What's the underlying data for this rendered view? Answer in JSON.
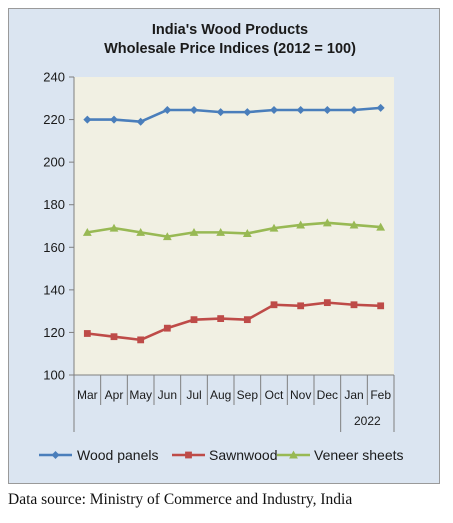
{
  "chart_data": {
    "type": "line",
    "title": [
      "India's Wood Products",
      "Wholesale Price Indices (2012 = 100)"
    ],
    "categories": [
      "Mar",
      "Apr",
      "May",
      "Jun",
      "Jul",
      "Aug",
      "Sep",
      "Oct",
      "Nov",
      "Dec",
      "Jan",
      "Feb"
    ],
    "year_group": {
      "label": "2022",
      "from": "Jan",
      "to": "Feb"
    },
    "ylim": [
      100,
      240
    ],
    "yticks": [
      100,
      120,
      140,
      160,
      180,
      200,
      220,
      240
    ],
    "grid": false,
    "legend_position": "bottom",
    "series": [
      {
        "name": "Wood panels",
        "color": "#4a7ebb",
        "marker": "diamond",
        "values": [
          220.0,
          220.0,
          219.0,
          224.5,
          224.5,
          223.5,
          223.5,
          224.5,
          224.5,
          224.5,
          224.5,
          225.5
        ]
      },
      {
        "name": "Sawnwood",
        "color": "#be4b48",
        "marker": "square",
        "values": [
          119.5,
          118.0,
          116.5,
          122.0,
          126.0,
          126.5,
          126.0,
          133.0,
          132.5,
          134.0,
          133.0,
          132.5
        ]
      },
      {
        "name": "Veneer sheets",
        "color": "#98b954",
        "marker": "triangle",
        "values": [
          167.0,
          169.0,
          167.0,
          165.0,
          167.0,
          167.0,
          166.5,
          169.0,
          170.5,
          171.5,
          170.5,
          169.5
        ]
      }
    ]
  },
  "colors": {
    "frame_background": "#dbe5f1",
    "plot_background": "#f1f0e3",
    "axis": "#7f7f7f"
  },
  "source_note": "Data source: Ministry of Commerce and Industry, India"
}
